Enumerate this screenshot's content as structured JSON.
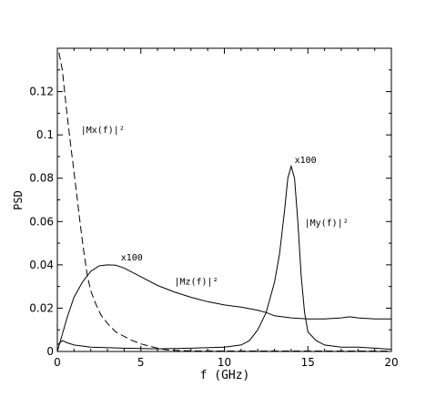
{
  "chart_data": {
    "type": "line",
    "xlabel": "f (GHz)",
    "ylabel": "PSD",
    "xlim": [
      0,
      20
    ],
    "ylim": [
      0,
      0.14
    ],
    "xticks": [
      0,
      5,
      10,
      15,
      20
    ],
    "xtick_labels": [
      "0",
      "5",
      "10",
      "15",
      "20"
    ],
    "yticks": [
      0,
      0.02,
      0.04,
      0.06,
      0.08,
      0.1,
      0.12
    ],
    "ytick_labels": [
      "0",
      "0.02",
      "0.04",
      "0.06",
      "0.08",
      "0.1",
      "0.12"
    ],
    "grid": false,
    "series": [
      {
        "name": "|Mx(f)|²",
        "style": "dashed",
        "color": "#000000",
        "x": [
          0.1,
          0.3,
          0.5,
          0.8,
          1.0,
          1.2,
          1.4,
          1.6,
          1.8,
          2.0,
          2.3,
          2.6,
          3.0,
          3.5,
          4.0,
          4.5,
          5.0,
          5.5,
          6.0,
          6.5,
          7.0,
          8.0,
          10.0,
          12.0,
          15.0,
          18.0,
          20.0
        ],
        "y": [
          0.138,
          0.13,
          0.115,
          0.095,
          0.083,
          0.07,
          0.057,
          0.045,
          0.035,
          0.028,
          0.022,
          0.017,
          0.013,
          0.009,
          0.007,
          0.005,
          0.0035,
          0.0025,
          0.0015,
          0.0008,
          0.0005,
          0.0003,
          0.0002,
          0.0002,
          0.0002,
          0.0002,
          0.0002
        ]
      },
      {
        "name": "|Mz(f)|²",
        "style": "solid",
        "color": "#000000",
        "x": [
          0.0,
          0.3,
          0.6,
          1.0,
          1.5,
          2.0,
          2.5,
          3.0,
          3.5,
          4.0,
          5.0,
          6.0,
          7.0,
          8.0,
          9.0,
          10.0,
          11.0,
          12.0,
          12.5,
          13.0,
          14.0,
          15.0,
          16.0,
          17.0,
          17.5,
          18.0,
          19.0,
          20.0
        ],
        "y": [
          0.0,
          0.008,
          0.016,
          0.025,
          0.032,
          0.037,
          0.0395,
          0.04,
          0.0398,
          0.0385,
          0.0345,
          0.0305,
          0.0275,
          0.025,
          0.023,
          0.0215,
          0.0205,
          0.019,
          0.018,
          0.0165,
          0.0155,
          0.015,
          0.015,
          0.0155,
          0.016,
          0.0155,
          0.015,
          0.015
        ]
      },
      {
        "name": "|My(f)|²",
        "style": "solid",
        "color": "#000000",
        "x": [
          0.0,
          0.3,
          0.6,
          1.0,
          2.0,
          4.0,
          6.0,
          8.0,
          10.0,
          11.0,
          11.5,
          12.0,
          12.5,
          13.0,
          13.3,
          13.6,
          13.8,
          14.0,
          14.2,
          14.4,
          14.6,
          14.8,
          15.0,
          15.5,
          16.0,
          17.0,
          18.0,
          19.0,
          20.0
        ],
        "y": [
          0.003,
          0.005,
          0.004,
          0.003,
          0.002,
          0.0015,
          0.0012,
          0.0015,
          0.002,
          0.003,
          0.005,
          0.01,
          0.018,
          0.032,
          0.045,
          0.065,
          0.08,
          0.0855,
          0.08,
          0.06,
          0.035,
          0.018,
          0.009,
          0.005,
          0.003,
          0.002,
          0.002,
          0.0015,
          0.001
        ]
      }
    ],
    "annotations": [
      {
        "text": "|Mx(f)|²",
        "x": 1.4,
        "y": 0.101
      },
      {
        "text": "|Mz(f)|²",
        "x": 7.0,
        "y": 0.031
      },
      {
        "text": "|My(f)|²",
        "x": 14.8,
        "y": 0.058
      },
      {
        "text": "x100",
        "x": 3.8,
        "y": 0.042
      },
      {
        "text": "x100",
        "x": 14.2,
        "y": 0.087
      }
    ]
  }
}
